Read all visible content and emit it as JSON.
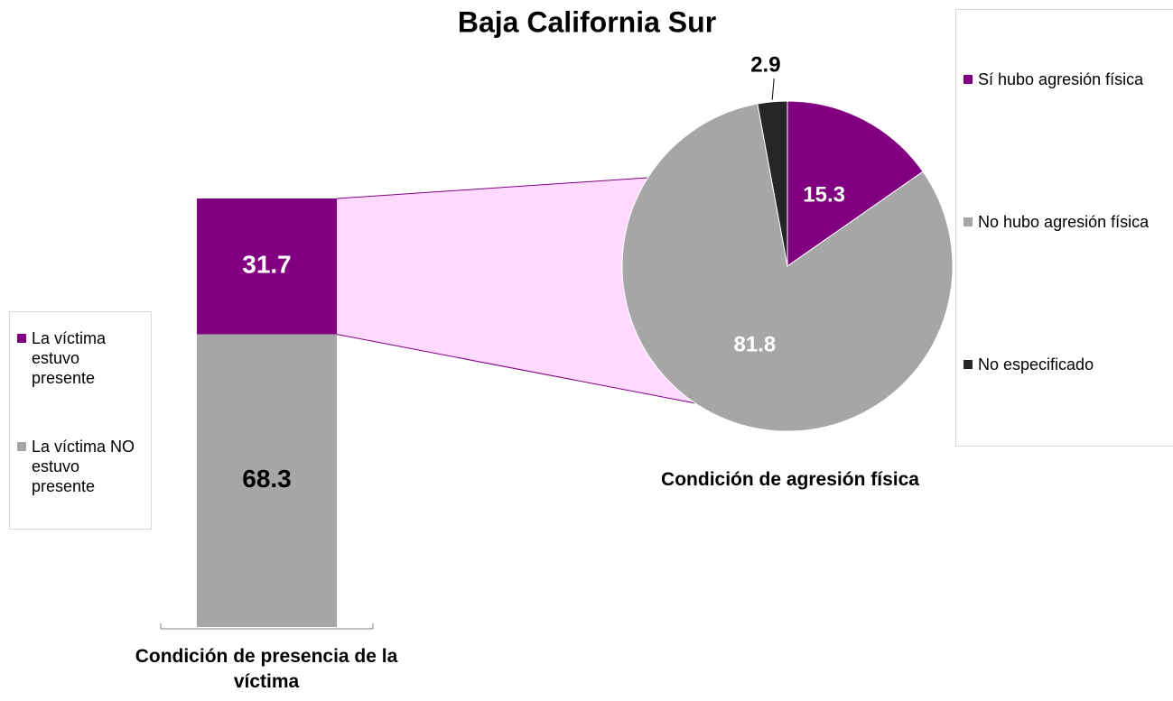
{
  "title": "Baja California Sur",
  "chart_data": [
    {
      "type": "stacked-bar",
      "categories": [
        "Condición de presencia de la víctima"
      ],
      "series": [
        {
          "name": "La víctima estuvo presente",
          "color": "#800080",
          "values": [
            31.7
          ]
        },
        {
          "name": "La víctima NO estuvo presente",
          "color": "#a6a6a6",
          "values": [
            68.3
          ]
        }
      ]
    },
    {
      "type": "pie",
      "title": "Condición de agresión física",
      "categories": [
        "Sí hubo agresión física",
        "No hubo agresión física",
        "No especificado"
      ],
      "values": [
        15.3,
        81.8,
        2.9
      ],
      "colors": [
        "#800080",
        "#a6a6a6",
        "#262626"
      ]
    }
  ]
}
